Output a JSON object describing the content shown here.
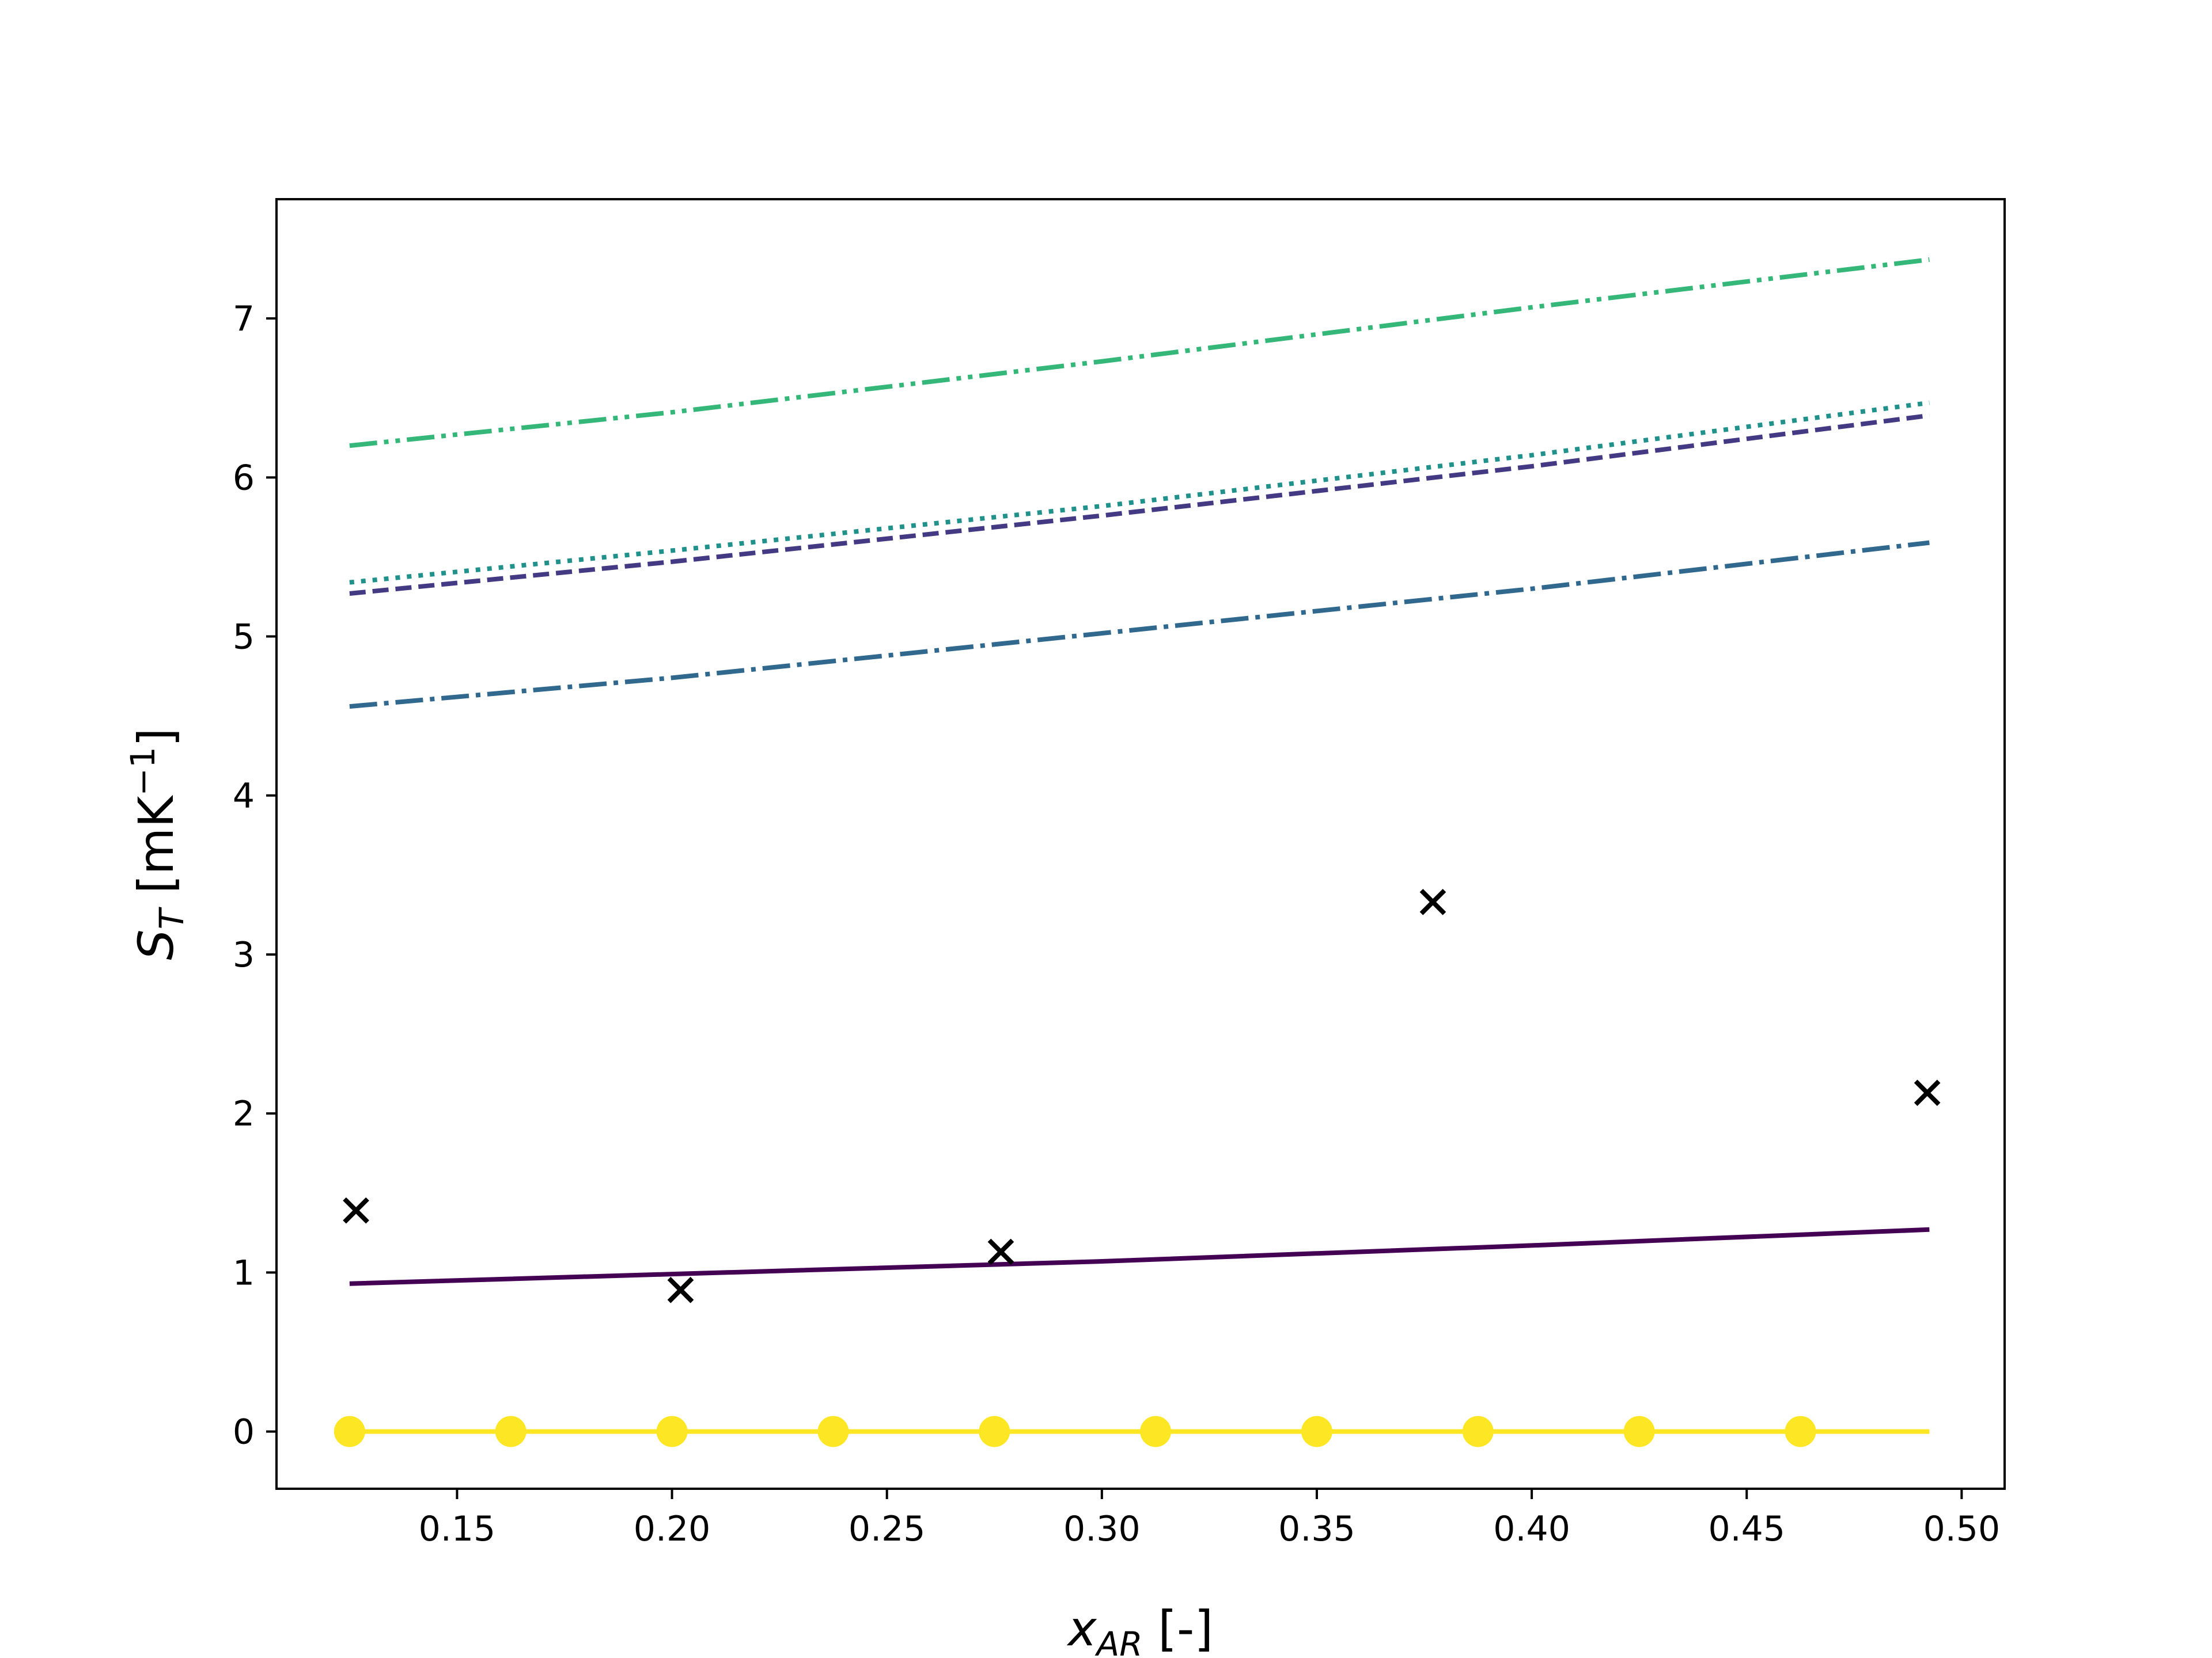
{
  "chart_data": {
    "type": "line",
    "xlabel": {
      "base": "x",
      "sub": "AR",
      "rest": " [-]"
    },
    "ylabel": {
      "base": "S",
      "sub": "T",
      "rest": " [mK",
      "sup": "−1",
      "close": "]"
    },
    "xlim": [
      0.108,
      0.51
    ],
    "ylim": [
      -0.36,
      7.75
    ],
    "xticks": [
      0.15,
      0.2,
      0.25,
      0.3,
      0.35,
      0.4,
      0.45,
      0.5
    ],
    "xtick_labels": [
      "0.15",
      "0.20",
      "0.25",
      "0.30",
      "0.35",
      "0.40",
      "0.45",
      "0.50"
    ],
    "yticks": [
      0,
      1,
      2,
      3,
      4,
      5,
      6,
      7
    ],
    "ytick_labels": [
      "0",
      "1",
      "2",
      "3",
      "4",
      "5",
      "6",
      "7"
    ],
    "grid": false,
    "series": [
      {
        "style": "dashdotdot",
        "color": "#35b779",
        "x": [
          0.125,
          0.2,
          0.3,
          0.4,
          0.4925
        ],
        "y": [
          6.2,
          6.41,
          6.73,
          7.07,
          7.37
        ]
      },
      {
        "style": "dotted",
        "color": "#21918c",
        "x": [
          0.125,
          0.2,
          0.3,
          0.4,
          0.4925
        ],
        "y": [
          5.34,
          5.54,
          5.82,
          6.14,
          6.47
        ]
      },
      {
        "style": "dashed",
        "color": "#443983",
        "x": [
          0.125,
          0.2,
          0.3,
          0.4,
          0.4925
        ],
        "y": [
          5.27,
          5.47,
          5.76,
          6.07,
          6.39
        ]
      },
      {
        "style": "dashdot",
        "color": "#31688e",
        "x": [
          0.125,
          0.2,
          0.3,
          0.4,
          0.4925
        ],
        "y": [
          4.56,
          4.74,
          5.02,
          5.3,
          5.59
        ]
      },
      {
        "style": "solid",
        "color": "#440154",
        "x": [
          0.125,
          0.2,
          0.3,
          0.4,
          0.4925
        ],
        "y": [
          0.93,
          0.99,
          1.07,
          1.17,
          1.27
        ]
      },
      {
        "style": "solid-markers",
        "color": "#fde725",
        "x": [
          0.125,
          0.1625,
          0.2,
          0.2375,
          0.275,
          0.3125,
          0.35,
          0.3875,
          0.425,
          0.4625,
          0.4925
        ],
        "y": [
          0,
          0,
          0,
          0,
          0,
          0,
          0,
          0,
          0,
          0,
          0
        ],
        "marker_count": 10
      },
      {
        "style": "x-markers",
        "color": "#000000",
        "x": [
          0.1265,
          0.202,
          0.2765,
          0.377,
          0.492
        ],
        "y": [
          1.39,
          0.89,
          1.13,
          3.33,
          2.13
        ]
      }
    ]
  }
}
